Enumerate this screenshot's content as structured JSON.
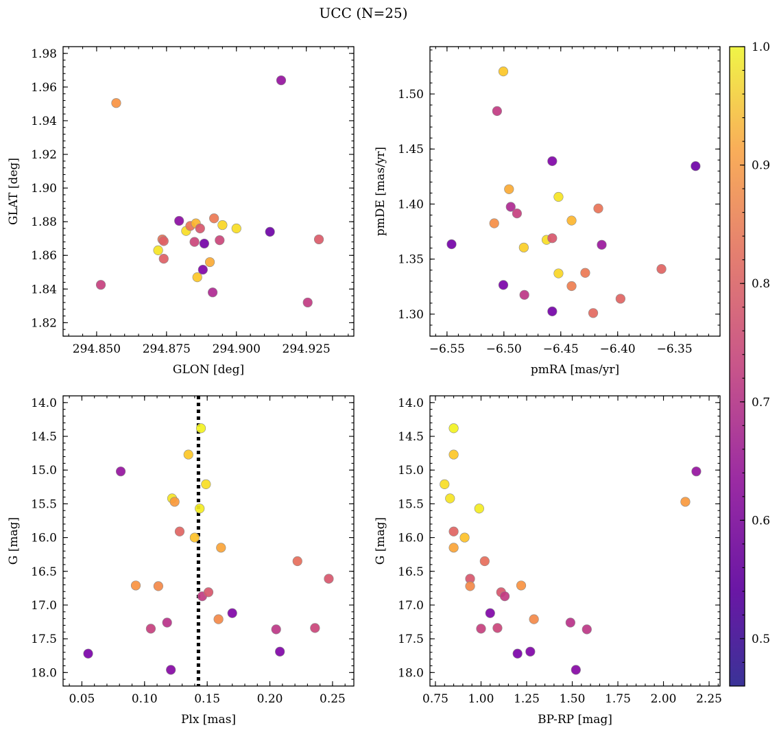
{
  "figure": {
    "title": "UCC (N=25)"
  },
  "colorbar": {
    "range": [
      0.46,
      1.0
    ],
    "ticks": [
      0.5,
      0.6,
      0.7,
      0.8,
      0.9,
      1.0
    ],
    "tick_labels": [
      "0.5",
      "0.6",
      "0.7",
      "0.8",
      "0.9",
      "1.0"
    ],
    "colormap": "plasma"
  },
  "chart_data": [
    {
      "type": "scatter",
      "panel": "top-left",
      "xlabel": "GLON [deg]",
      "ylabel": "GLAT [deg]",
      "xlim": [
        294.838,
        294.942
      ],
      "ylim": [
        1.812,
        1.984
      ],
      "xticks": [
        294.85,
        294.875,
        294.9,
        294.925
      ],
      "xtick_labels": [
        "294.850",
        "294.875",
        "294.900",
        "294.925"
      ],
      "yticks": [
        1.82,
        1.84,
        1.86,
        1.88,
        1.9,
        1.92,
        1.94,
        1.96,
        1.98
      ],
      "ytick_labels": [
        "1.82",
        "1.84",
        "1.86",
        "1.88",
        "1.90",
        "1.92",
        "1.94",
        "1.96",
        "1.98"
      ],
      "points": [
        {
          "x": 294.8515,
          "y": 1.8425,
          "c": 0.67
        },
        {
          "x": 294.857,
          "y": 1.9505,
          "c": 0.84
        },
        {
          "x": 294.872,
          "y": 1.863,
          "c": 0.97
        },
        {
          "x": 294.8735,
          "y": 1.8695,
          "c": 0.78
        },
        {
          "x": 294.874,
          "y": 1.8685,
          "c": 0.74
        },
        {
          "x": 294.874,
          "y": 1.858,
          "c": 0.74
        },
        {
          "x": 294.8795,
          "y": 1.8805,
          "c": 0.55
        },
        {
          "x": 294.882,
          "y": 1.8745,
          "c": 0.96
        },
        {
          "x": 294.8835,
          "y": 1.8775,
          "c": 0.78
        },
        {
          "x": 294.885,
          "y": 1.868,
          "c": 0.68
        },
        {
          "x": 294.8855,
          "y": 1.879,
          "c": 0.9
        },
        {
          "x": 294.886,
          "y": 1.847,
          "c": 0.93
        },
        {
          "x": 294.887,
          "y": 1.876,
          "c": 0.72
        },
        {
          "x": 294.888,
          "y": 1.8515,
          "c": 0.53
        },
        {
          "x": 294.8885,
          "y": 1.867,
          "c": 0.51
        },
        {
          "x": 294.8905,
          "y": 1.856,
          "c": 0.88
        },
        {
          "x": 294.8915,
          "y": 1.838,
          "c": 0.62
        },
        {
          "x": 294.892,
          "y": 1.882,
          "c": 0.79
        },
        {
          "x": 294.894,
          "y": 1.869,
          "c": 0.68
        },
        {
          "x": 294.895,
          "y": 1.878,
          "c": 0.95
        },
        {
          "x": 294.9,
          "y": 1.876,
          "c": 0.96
        },
        {
          "x": 294.912,
          "y": 1.874,
          "c": 0.5
        },
        {
          "x": 294.916,
          "y": 1.964,
          "c": 0.57
        },
        {
          "x": 294.9255,
          "y": 1.832,
          "c": 0.66
        },
        {
          "x": 294.9295,
          "y": 1.8695,
          "c": 0.73
        }
      ]
    },
    {
      "type": "scatter",
      "panel": "top-right",
      "xlabel": "pmRA [mas/yr]",
      "ylabel": "pmDE [mas/yr]",
      "xlim": [
        -6.565,
        -6.31
      ],
      "ylim": [
        1.28,
        1.543
      ],
      "xticks": [
        -6.55,
        -6.5,
        -6.45,
        -6.4,
        -6.35
      ],
      "xtick_labels": [
        "−6.55",
        "−6.50",
        "−6.45",
        "−6.40",
        "−6.35"
      ],
      "yticks": [
        1.3,
        1.35,
        1.4,
        1.45,
        1.5
      ],
      "ytick_labels": [
        "1.30",
        "1.35",
        "1.40",
        "1.45",
        "1.50"
      ],
      "points": [
        {
          "x": -6.546,
          "y": 1.3635,
          "c": 0.51
        },
        {
          "x": -6.5005,
          "y": 1.5205,
          "c": 0.93
        },
        {
          "x": -6.506,
          "y": 1.4845,
          "c": 0.66
        },
        {
          "x": -6.5005,
          "y": 1.3265,
          "c": 0.52
        },
        {
          "x": -6.5085,
          "y": 1.3825,
          "c": 0.83
        },
        {
          "x": -6.4955,
          "y": 1.4135,
          "c": 0.88
        },
        {
          "x": -6.494,
          "y": 1.3975,
          "c": 0.62
        },
        {
          "x": -6.4885,
          "y": 1.3915,
          "c": 0.67
        },
        {
          "x": -6.4825,
          "y": 1.3605,
          "c": 0.94
        },
        {
          "x": -6.482,
          "y": 1.3175,
          "c": 0.65
        },
        {
          "x": -6.4625,
          "y": 1.3675,
          "c": 0.96
        },
        {
          "x": -6.4575,
          "y": 1.439,
          "c": 0.53
        },
        {
          "x": -6.4575,
          "y": 1.369,
          "c": 0.72
        },
        {
          "x": -6.4575,
          "y": 1.3025,
          "c": 0.51
        },
        {
          "x": -6.452,
          "y": 1.4065,
          "c": 0.97
        },
        {
          "x": -6.452,
          "y": 1.337,
          "c": 0.95
        },
        {
          "x": -6.4405,
          "y": 1.385,
          "c": 0.9
        },
        {
          "x": -6.4405,
          "y": 1.3255,
          "c": 0.8
        },
        {
          "x": -6.4285,
          "y": 1.3375,
          "c": 0.79
        },
        {
          "x": -6.4215,
          "y": 1.301,
          "c": 0.76
        },
        {
          "x": -6.417,
          "y": 1.396,
          "c": 0.78
        },
        {
          "x": -6.414,
          "y": 1.363,
          "c": 0.58
        },
        {
          "x": -6.3975,
          "y": 1.314,
          "c": 0.75
        },
        {
          "x": -6.3615,
          "y": 1.341,
          "c": 0.75
        },
        {
          "x": -6.3315,
          "y": 1.4345,
          "c": 0.5
        }
      ]
    },
    {
      "type": "scatter",
      "panel": "bottom-left",
      "xlabel": "Plx [mas]",
      "ylabel": "G [mag]",
      "xlim": [
        0.035,
        0.267
      ],
      "ylim": [
        18.2,
        13.9
      ],
      "y_inverted": true,
      "xticks": [
        0.05,
        0.1,
        0.15,
        0.2,
        0.25
      ],
      "xtick_labels": [
        "0.05",
        "0.10",
        "0.15",
        "0.20",
        "0.25"
      ],
      "yticks": [
        14.0,
        14.5,
        15.0,
        15.5,
        16.0,
        16.5,
        17.0,
        17.5,
        18.0
      ],
      "ytick_labels": [
        "14.0",
        "14.5",
        "15.0",
        "15.5",
        "16.0",
        "16.5",
        "17.0",
        "17.5",
        "18.0"
      ],
      "vline": {
        "x": 0.143,
        "style": "dotted",
        "color": "#000000"
      },
      "points": [
        {
          "x": 0.055,
          "y": 17.72,
          "c": 0.52
        },
        {
          "x": 0.081,
          "y": 15.02,
          "c": 0.57
        },
        {
          "x": 0.093,
          "y": 16.71,
          "c": 0.84
        },
        {
          "x": 0.105,
          "y": 17.35,
          "c": 0.67
        },
        {
          "x": 0.111,
          "y": 16.72,
          "c": 0.82
        },
        {
          "x": 0.118,
          "y": 17.26,
          "c": 0.64
        },
        {
          "x": 0.121,
          "y": 17.96,
          "c": 0.54
        },
        {
          "x": 0.122,
          "y": 15.42,
          "c": 0.97
        },
        {
          "x": 0.124,
          "y": 15.47,
          "c": 0.85
        },
        {
          "x": 0.128,
          "y": 15.91,
          "c": 0.75
        },
        {
          "x": 0.135,
          "y": 14.77,
          "c": 0.93
        },
        {
          "x": 0.14,
          "y": 16.0,
          "c": 0.92
        },
        {
          "x": 0.144,
          "y": 15.57,
          "c": 0.98
        },
        {
          "x": 0.145,
          "y": 14.38,
          "c": 0.99
        },
        {
          "x": 0.146,
          "y": 16.87,
          "c": 0.66
        },
        {
          "x": 0.149,
          "y": 15.21,
          "c": 0.96
        },
        {
          "x": 0.151,
          "y": 16.81,
          "c": 0.72
        },
        {
          "x": 0.159,
          "y": 17.21,
          "c": 0.82
        },
        {
          "x": 0.161,
          "y": 16.15,
          "c": 0.87
        },
        {
          "x": 0.17,
          "y": 17.12,
          "c": 0.53
        },
        {
          "x": 0.205,
          "y": 17.36,
          "c": 0.65
        },
        {
          "x": 0.208,
          "y": 17.69,
          "c": 0.53
        },
        {
          "x": 0.222,
          "y": 16.35,
          "c": 0.77
        },
        {
          "x": 0.236,
          "y": 17.34,
          "c": 0.68
        },
        {
          "x": 0.247,
          "y": 16.61,
          "c": 0.72
        }
      ]
    },
    {
      "type": "scatter",
      "panel": "bottom-right",
      "xlabel": "BP-RP [mag]",
      "ylabel": "G [mag]",
      "xlim": [
        0.72,
        2.31
      ],
      "ylim": [
        18.2,
        13.9
      ],
      "y_inverted": true,
      "xticks": [
        0.75,
        1.0,
        1.25,
        1.5,
        1.75,
        2.0,
        2.25
      ],
      "xtick_labels": [
        "0.75",
        "1.00",
        "1.25",
        "1.50",
        "1.75",
        "2.00",
        "2.25"
      ],
      "yticks": [
        14.0,
        14.5,
        15.0,
        15.5,
        16.0,
        16.5,
        17.0,
        17.5,
        18.0
      ],
      "ytick_labels": [
        "14.0",
        "14.5",
        "15.0",
        "15.5",
        "16.0",
        "16.5",
        "17.0",
        "17.5",
        "18.0"
      ],
      "points": [
        {
          "x": 0.8,
          "y": 15.21,
          "c": 0.96
        },
        {
          "x": 0.83,
          "y": 15.42,
          "c": 0.97
        },
        {
          "x": 0.85,
          "y": 14.38,
          "c": 0.99
        },
        {
          "x": 0.85,
          "y": 14.77,
          "c": 0.93
        },
        {
          "x": 0.85,
          "y": 15.91,
          "c": 0.75
        },
        {
          "x": 0.85,
          "y": 16.15,
          "c": 0.87
        },
        {
          "x": 0.91,
          "y": 16.0,
          "c": 0.92
        },
        {
          "x": 0.94,
          "y": 16.61,
          "c": 0.72
        },
        {
          "x": 0.94,
          "y": 16.72,
          "c": 0.82
        },
        {
          "x": 0.99,
          "y": 15.57,
          "c": 0.98
        },
        {
          "x": 1.0,
          "y": 17.35,
          "c": 0.67
        },
        {
          "x": 1.02,
          "y": 16.35,
          "c": 0.77
        },
        {
          "x": 1.05,
          "y": 17.12,
          "c": 0.53
        },
        {
          "x": 1.09,
          "y": 17.34,
          "c": 0.68
        },
        {
          "x": 1.11,
          "y": 16.81,
          "c": 0.72
        },
        {
          "x": 1.13,
          "y": 16.87,
          "c": 0.66
        },
        {
          "x": 1.2,
          "y": 17.72,
          "c": 0.52
        },
        {
          "x": 1.22,
          "y": 16.71,
          "c": 0.84
        },
        {
          "x": 1.27,
          "y": 17.69,
          "c": 0.53
        },
        {
          "x": 1.29,
          "y": 17.21,
          "c": 0.82
        },
        {
          "x": 1.49,
          "y": 17.26,
          "c": 0.64
        },
        {
          "x": 1.52,
          "y": 17.96,
          "c": 0.54
        },
        {
          "x": 1.58,
          "y": 17.36,
          "c": 0.65
        },
        {
          "x": 2.12,
          "y": 15.47,
          "c": 0.85
        },
        {
          "x": 2.18,
          "y": 15.02,
          "c": 0.57
        }
      ]
    }
  ]
}
